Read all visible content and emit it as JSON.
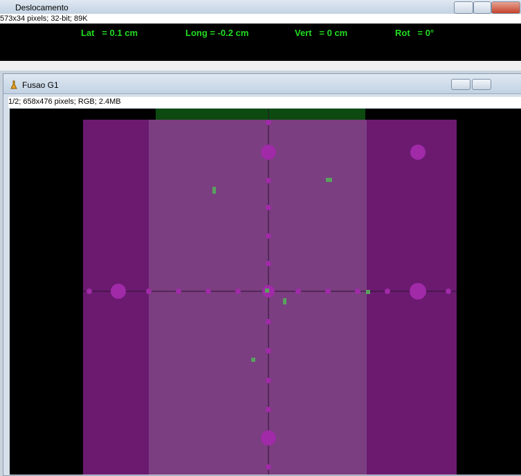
{
  "windows": [
    {
      "title": "Deslocamento",
      "info": "573x34 pixels; 32-bit; 89K",
      "readouts": [
        "Lat   = 0.1 cm",
        "Long = -0.2 cm",
        "Vert   = 0 cm",
        "Rot   = 0°"
      ]
    },
    {
      "title": "Fusao G1",
      "info": "1/2; 658x476 pixels; RGB; 2.4MB"
    }
  ]
}
